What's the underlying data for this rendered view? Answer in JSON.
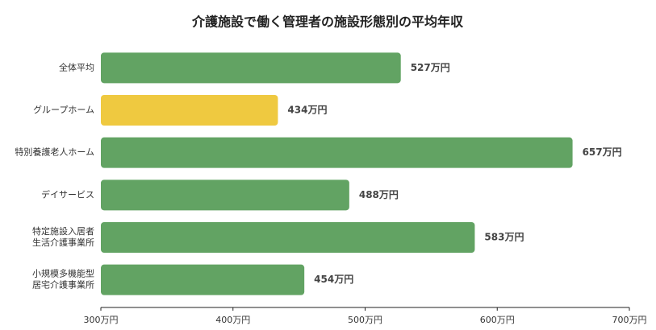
{
  "chart_data": {
    "type": "hbar",
    "title": "介護施設で働く管理者の施設形態別の平均年収",
    "categories": [
      "全体平均",
      "グループホーム",
      "特別養護老人ホーム",
      "デイサービス",
      [
        "特定施設入居者",
        "生活介護事業所"
      ],
      [
        "小規模多機能型",
        "居宅介護事業所"
      ]
    ],
    "values": [
      527,
      434,
      657,
      488,
      583,
      454
    ],
    "value_labels": [
      "527万円",
      "434万円",
      "657万円",
      "488万円",
      "583万円",
      "454万円"
    ],
    "colors": [
      "#62a363",
      "#efc940",
      "#62a363",
      "#62a363",
      "#62a363",
      "#62a363"
    ],
    "xlim": [
      300,
      700
    ],
    "xticks": [
      {
        "value": 300,
        "label": "300万円"
      },
      {
        "value": 400,
        "label": "400万円"
      },
      {
        "value": 500,
        "label": "500万円"
      },
      {
        "value": 600,
        "label": "600万円"
      },
      {
        "value": 700,
        "label": "700万円"
      }
    ]
  }
}
